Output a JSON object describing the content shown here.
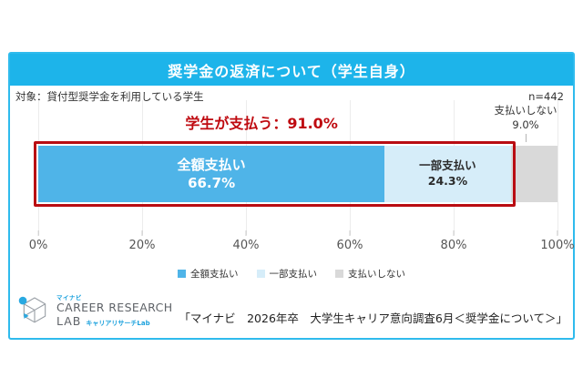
{
  "title": "奨学金の返済について（学生自身）",
  "meta": {
    "target": "対象：貸付型奨学金を利用している学生",
    "sample": "n=442"
  },
  "chart_data": {
    "type": "bar",
    "orientation": "horizontal",
    "stacked": true,
    "title": "奨学金の返済について（学生自身）",
    "categories": [
      "貸付型奨学金を利用している学生"
    ],
    "series": [
      {
        "name": "全額支払い",
        "value": 66.7,
        "pct_label": "66.7%",
        "color": "#4fb4e8",
        "text_color": "#ffffff"
      },
      {
        "name": "一部支払い",
        "value": 24.3,
        "pct_label": "24.3%",
        "color": "#d6edf9",
        "text_color": "#2b2b2b"
      },
      {
        "name": "支払いしない",
        "value": 9.0,
        "pct_label": "9.0%",
        "color": "#d9d9d9",
        "text_color": "#2b2b2b"
      }
    ],
    "xlim": [
      0,
      100
    ],
    "x_ticks": [
      "0%",
      "20%",
      "40%",
      "60%",
      "80%",
      "100%"
    ],
    "grid": true,
    "legend_position": "bottom",
    "highlight": {
      "label": "学生が支払う：91.0%",
      "total": 91.0
    }
  },
  "footer": {
    "logo": {
      "brand": "マイナビ",
      "line1": "CAREER RESEARCH",
      "line2": "LAB",
      "line2_sub": "キャリアリサーチLab"
    },
    "citation": "「マイナビ　2026年卒　大学生キャリア意向調査6月＜奨学金について＞」"
  },
  "colors": {
    "title_bar": "#1db4ea",
    "card_border": "#2fbbed",
    "highlight_red": "#b90c12",
    "accent_blue": "#4fb4e8",
    "light_blue": "#d6edf9",
    "gray": "#d9d9d9"
  }
}
